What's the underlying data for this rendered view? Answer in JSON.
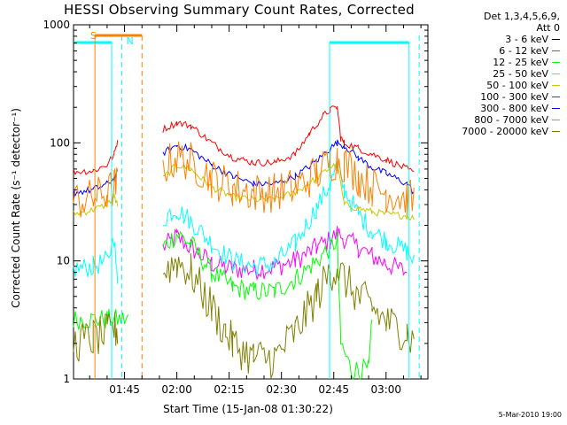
{
  "chart_data": {
    "type": "line",
    "title": "HESSI Observing Summary Count Rates, Corrected",
    "xlabel": "Start Time (15-Jan-08 01:30:22)",
    "ylabel": "Corrected Count Rate (s⁻¹ detector⁻¹)",
    "yscale": "log",
    "ylim": [
      1,
      1000
    ],
    "y_ticks": [
      "1",
      "10",
      "100",
      "1000"
    ],
    "xlim_minutes": [
      90.37,
      192
    ],
    "x_ticks": [
      {
        "label": "01:45",
        "minutes": 105
      },
      {
        "label": "02:00",
        "minutes": 120
      },
      {
        "label": "02:15",
        "minutes": 135
      },
      {
        "label": "02:30",
        "minutes": 150
      },
      {
        "label": "02:45",
        "minutes": 165
      },
      {
        "label": "03:00",
        "minutes": 180
      }
    ],
    "legend_header": [
      "Det 1,3,4,5,6,9,",
      "Att 0"
    ],
    "legend_placement": "outside-right",
    "series": [
      {
        "name": "3 - 6 keV",
        "color": "#000000",
        "values": []
      },
      {
        "name": "6 - 12 keV",
        "color": "#ff00ff",
        "x": [
          90.37,
          100,
          106,
          112,
          116,
          120,
          124,
          130,
          136,
          142,
          148,
          154,
          160,
          164,
          166,
          172,
          176,
          180,
          186,
          188
        ],
        "values": [
          null,
          null,
          null,
          null,
          13,
          16,
          13,
          9.5,
          8.5,
          8.5,
          8.8,
          10,
          13,
          15,
          17,
          13,
          11,
          9.5,
          8,
          null
        ]
      },
      {
        "name": "12 - 25 keV",
        "color": "#00ff00",
        "x": [
          90.37,
          100,
          106,
          112,
          116,
          120,
          124,
          130,
          136,
          142,
          148,
          154,
          160,
          164,
          166,
          167,
          170,
          172,
          175,
          176
        ],
        "values": [
          3.2,
          3.2,
          3.2,
          null,
          13,
          17,
          14,
          8,
          6,
          5.5,
          5.5,
          7,
          10,
          13,
          15,
          2,
          1.2,
          1.2,
          1.2,
          3
        ]
      },
      {
        "name": "25 - 50 keV",
        "color": "#00ffff",
        "x": [
          90.37,
          96,
          100,
          102,
          103,
          106,
          112,
          116,
          118,
          120,
          124,
          130,
          136,
          142,
          148,
          154,
          160,
          164,
          166,
          168,
          172,
          176,
          180,
          186,
          188
        ],
        "values": [
          8.5,
          9,
          10,
          16,
          6,
          null,
          null,
          22,
          26,
          27,
          22,
          14,
          10,
          9,
          9.5,
          14,
          28,
          45,
          65,
          40,
          25,
          18,
          15,
          12,
          10
        ]
      },
      {
        "name": "50 - 100 keV",
        "color": "#c8c800",
        "x": [
          90.37,
          96,
          100,
          102,
          103,
          106,
          112,
          116,
          120,
          124,
          130,
          136,
          142,
          148,
          154,
          160,
          164,
          166,
          168,
          172,
          176,
          180,
          186,
          188
        ],
        "values": [
          25,
          27,
          30,
          35,
          30,
          null,
          null,
          50,
          65,
          60,
          42,
          35,
          33,
          33,
          38,
          50,
          62,
          65,
          30,
          28,
          26,
          25,
          24,
          23
        ]
      },
      {
        "name": "100 - 300 keV",
        "color": "#ff0000",
        "x": [
          90.37,
          96,
          100,
          102,
          103,
          106,
          112,
          116,
          120,
          124,
          130,
          136,
          142,
          148,
          154,
          158,
          162,
          164,
          166,
          167,
          168,
          172,
          176,
          180,
          186,
          188
        ],
        "values": [
          57,
          58,
          65,
          80,
          105,
          null,
          null,
          130,
          148,
          140,
          100,
          75,
          68,
          68,
          80,
          120,
          170,
          190,
          200,
          110,
          100,
          90,
          80,
          72,
          60,
          55
        ]
      },
      {
        "name": "300 - 800 keV",
        "color": "#0000ff",
        "x": [
          90.37,
          96,
          100,
          102,
          103,
          106,
          112,
          116,
          120,
          124,
          130,
          136,
          142,
          148,
          154,
          160,
          164,
          166,
          168,
          172,
          176,
          180,
          186,
          188
        ],
        "values": [
          38,
          40,
          45,
          50,
          55,
          null,
          null,
          82,
          95,
          88,
          65,
          52,
          45,
          45,
          52,
          70,
          90,
          100,
          95,
          75,
          62,
          55,
          45,
          38
        ]
      },
      {
        "name": "800 - 7000 keV",
        "color": "#ff8000",
        "x": [
          90.37,
          96,
          100,
          102,
          103,
          106,
          112,
          116,
          120,
          124,
          130,
          136,
          142,
          148,
          154,
          160,
          164,
          166,
          168,
          172,
          176,
          180,
          186,
          188
        ],
        "values": [
          32,
          34,
          38,
          42,
          45,
          null,
          null,
          62,
          75,
          70,
          50,
          42,
          38,
          38,
          42,
          55,
          68,
          72,
          68,
          52,
          42,
          38,
          34,
          32
        ]
      },
      {
        "name": "7000 - 20000 keV",
        "color": "#808000",
        "x": [
          90.37,
          96,
          100,
          102,
          103,
          106,
          112,
          116,
          120,
          124,
          130,
          134,
          136,
          142,
          148,
          154,
          160,
          164,
          166,
          168,
          172,
          176,
          180,
          186,
          188
        ],
        "values": [
          2,
          2.2,
          2.4,
          2.6,
          2.6,
          null,
          null,
          8,
          10,
          8,
          4,
          2.5,
          2,
          1.5,
          1.5,
          2.5,
          5,
          8,
          9,
          7,
          5,
          4,
          3,
          2.5,
          2
        ]
      }
    ],
    "annotations": {
      "saa_label": "S",
      "night_label": "N",
      "saa_color": "#ff8000",
      "night_color": "#00ffff"
    }
  },
  "footer": {
    "date_stamp": "5-Mar-2010 19:00"
  }
}
